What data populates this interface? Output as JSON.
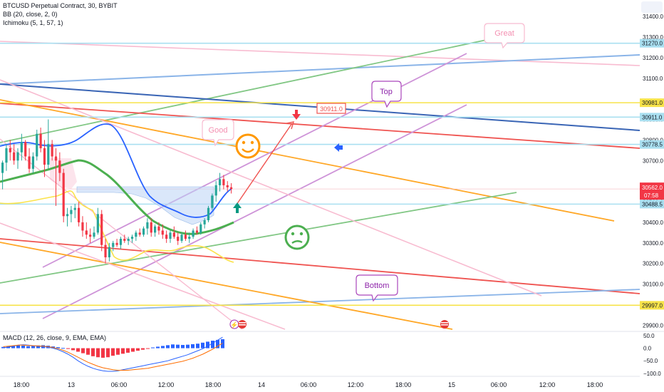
{
  "header": {
    "symbol": "BTCUSD Perpetual Contract, 30, BYBIT",
    "bb": "BB (20, close, 2, 0)",
    "ichimoku": "Ichimoku (5, 1, 57, 1)",
    "macd": "MACD (12, 26, close, 9, EMA, EMA)"
  },
  "annotations": {
    "good": "Good",
    "great": "Great",
    "top": "Top",
    "bottom": "Bottom",
    "price_label": "30911.0"
  },
  "chart_data": {
    "type": "candlestick",
    "symbol": "BTCUSD",
    "interval": "30",
    "price_axis_ticks": [
      31400,
      31300,
      31200,
      31100,
      30900,
      30800,
      30700,
      30500,
      30400,
      30300,
      30200,
      30100,
      29900
    ],
    "price_axis_tick_labels": [
      "31400.0",
      "31300.0",
      "31200.0",
      "31100.0",
      "30900.0",
      "30800.0",
      "30700.0",
      "30500.0",
      "30400.0",
      "30300.0",
      "30200.0",
      "30100.0",
      "29900.0"
    ],
    "price_ylim": [
      29870,
      31480
    ],
    "horizontal_levels": [
      {
        "value": 31270.0,
        "label": "31270.0",
        "color": "#a9dff0"
      },
      {
        "value": 30981.0,
        "label": "30981.0",
        "color": "#f7e34a"
      },
      {
        "value": 30911.0,
        "label": "30911.0",
        "color": "#a9dff0"
      },
      {
        "value": 30778.5,
        "label": "30778.5",
        "color": "#a9dff0"
      },
      {
        "value": 30488.5,
        "label": "30488.5",
        "color": "#a9dff0"
      },
      {
        "value": 29997.0,
        "label": "29997.0",
        "color": "#f7e34a"
      }
    ],
    "last_price": {
      "value": 30562.0,
      "label": "30562.0",
      "countdown": "07:58",
      "color": "#f23645"
    },
    "time_axis_labels": [
      "18:00",
      "13",
      "06:00",
      "12:00",
      "18:00",
      "14",
      "06:00",
      "12:00",
      "18:00",
      "15",
      "06:00",
      "12:00",
      "18:00"
    ],
    "candles": [
      {
        "o": 30640,
        "h": 30700,
        "l": 30560,
        "c": 30690
      },
      {
        "o": 30690,
        "h": 30780,
        "l": 30650,
        "c": 30760
      },
      {
        "o": 30760,
        "h": 30800,
        "l": 30700,
        "c": 30740
      },
      {
        "o": 30740,
        "h": 30780,
        "l": 30680,
        "c": 30700
      },
      {
        "o": 30700,
        "h": 30760,
        "l": 30660,
        "c": 30740
      },
      {
        "o": 30740,
        "h": 30830,
        "l": 30700,
        "c": 30790
      },
      {
        "o": 30790,
        "h": 30800,
        "l": 30700,
        "c": 30720
      },
      {
        "o": 30720,
        "h": 30760,
        "l": 30640,
        "c": 30660
      },
      {
        "o": 30660,
        "h": 30740,
        "l": 30640,
        "c": 30720
      },
      {
        "o": 30720,
        "h": 30850,
        "l": 30700,
        "c": 30830
      },
      {
        "o": 30830,
        "h": 30860,
        "l": 30740,
        "c": 30760
      },
      {
        "o": 30760,
        "h": 30800,
        "l": 30620,
        "c": 30680
      },
      {
        "o": 30680,
        "h": 30900,
        "l": 30660,
        "c": 30780
      },
      {
        "o": 30780,
        "h": 30800,
        "l": 30700,
        "c": 30720
      },
      {
        "o": 30720,
        "h": 30760,
        "l": 30480,
        "c": 30700
      },
      {
        "o": 30700,
        "h": 30740,
        "l": 30600,
        "c": 30640
      },
      {
        "o": 30640,
        "h": 30660,
        "l": 30400,
        "c": 30430
      },
      {
        "o": 30430,
        "h": 30470,
        "l": 30380,
        "c": 30440
      },
      {
        "o": 30440,
        "h": 30480,
        "l": 30400,
        "c": 30460
      },
      {
        "o": 30460,
        "h": 30490,
        "l": 30420,
        "c": 30470
      },
      {
        "o": 30470,
        "h": 30500,
        "l": 30380,
        "c": 30400
      },
      {
        "o": 30400,
        "h": 30430,
        "l": 30330,
        "c": 30360
      },
      {
        "o": 30360,
        "h": 30400,
        "l": 30320,
        "c": 30340
      },
      {
        "o": 30340,
        "h": 30370,
        "l": 30300,
        "c": 30330
      },
      {
        "o": 30330,
        "h": 30380,
        "l": 30320,
        "c": 30350
      },
      {
        "o": 30350,
        "h": 30470,
        "l": 30340,
        "c": 30440
      },
      {
        "o": 30440,
        "h": 30460,
        "l": 30260,
        "c": 30290
      },
      {
        "o": 30290,
        "h": 30320,
        "l": 30200,
        "c": 30230
      },
      {
        "o": 30230,
        "h": 30300,
        "l": 30210,
        "c": 30280
      },
      {
        "o": 30280,
        "h": 30310,
        "l": 30260,
        "c": 30300
      },
      {
        "o": 30300,
        "h": 30320,
        "l": 30280,
        "c": 30290
      },
      {
        "o": 30290,
        "h": 30330,
        "l": 30270,
        "c": 30320
      },
      {
        "o": 30320,
        "h": 30340,
        "l": 30300,
        "c": 30310
      },
      {
        "o": 30310,
        "h": 30330,
        "l": 30290,
        "c": 30320
      },
      {
        "o": 30320,
        "h": 30340,
        "l": 30300,
        "c": 30330
      },
      {
        "o": 30330,
        "h": 30360,
        "l": 30310,
        "c": 30350
      },
      {
        "o": 30350,
        "h": 30370,
        "l": 30330,
        "c": 30340
      },
      {
        "o": 30340,
        "h": 30380,
        "l": 30330,
        "c": 30370
      },
      {
        "o": 30370,
        "h": 30420,
        "l": 30340,
        "c": 30400
      },
      {
        "o": 30400,
        "h": 30420,
        "l": 30330,
        "c": 30350
      },
      {
        "o": 30350,
        "h": 30390,
        "l": 30330,
        "c": 30380
      },
      {
        "o": 30380,
        "h": 30400,
        "l": 30340,
        "c": 30360
      },
      {
        "o": 30360,
        "h": 30390,
        "l": 30320,
        "c": 30340
      },
      {
        "o": 30340,
        "h": 30360,
        "l": 30300,
        "c": 30320
      },
      {
        "o": 30320,
        "h": 30360,
        "l": 30300,
        "c": 30350
      },
      {
        "o": 30350,
        "h": 30380,
        "l": 30320,
        "c": 30330
      },
      {
        "o": 30330,
        "h": 30350,
        "l": 30290,
        "c": 30310
      },
      {
        "o": 30310,
        "h": 30350,
        "l": 30300,
        "c": 30340
      },
      {
        "o": 30340,
        "h": 30360,
        "l": 30310,
        "c": 30320
      },
      {
        "o": 30320,
        "h": 30350,
        "l": 30300,
        "c": 30330
      },
      {
        "o": 30330,
        "h": 30370,
        "l": 30320,
        "c": 30360
      },
      {
        "o": 30360,
        "h": 30380,
        "l": 30340,
        "c": 30350
      },
      {
        "o": 30350,
        "h": 30400,
        "l": 30340,
        "c": 30390
      },
      {
        "o": 30390,
        "h": 30420,
        "l": 30370,
        "c": 30410
      },
      {
        "o": 30410,
        "h": 30480,
        "l": 30400,
        "c": 30470
      },
      {
        "o": 30470,
        "h": 30540,
        "l": 30460,
        "c": 30530
      },
      {
        "o": 30530,
        "h": 30600,
        "l": 30500,
        "c": 30580
      },
      {
        "o": 30580,
        "h": 30640,
        "l": 30550,
        "c": 30610
      },
      {
        "o": 30610,
        "h": 30630,
        "l": 30560,
        "c": 30580
      },
      {
        "o": 30580,
        "h": 30600,
        "l": 30550,
        "c": 30570
      },
      {
        "o": 30570,
        "h": 30590,
        "l": 30540,
        "c": 30562
      }
    ],
    "macd_axis_ticks": [
      50.0,
      0.0,
      -50.0,
      -100.0
    ],
    "macd_axis_tick_labels": [
      "50.0",
      "0.0",
      "−50.0",
      "−100.0"
    ],
    "macd_ylim": [
      -112,
      64
    ],
    "macd_hist": [
      5,
      8,
      10,
      12,
      10,
      8,
      9,
      11,
      12,
      10,
      7,
      4,
      1,
      -3,
      -8,
      -14,
      -20,
      -26,
      -32,
      -36,
      -38,
      -36,
      -30,
      -26,
      -22,
      -18,
      -14,
      -10,
      -6,
      -2,
      3,
      6,
      9,
      12,
      15,
      14,
      13,
      14,
      16,
      18,
      22,
      26,
      30,
      33,
      36
    ],
    "macd_line": [
      2,
      4,
      8,
      12,
      14,
      12,
      10,
      8,
      6,
      4,
      0,
      -6,
      -14,
      -24,
      -36,
      -50,
      -62,
      -72,
      -80,
      -86,
      -90,
      -92,
      -92,
      -90,
      -86,
      -82,
      -78,
      -74,
      -70,
      -66,
      -62,
      -58,
      -54,
      -50,
      -44,
      -38,
      -32,
      -26,
      -18,
      -10,
      -2,
      8,
      20,
      32,
      44
    ],
    "signal_line": [
      6,
      8,
      10,
      12,
      12,
      11,
      10,
      9,
      8,
      6,
      3,
      -2,
      -8,
      -16,
      -26,
      -36,
      -46,
      -56,
      -64,
      -72,
      -78,
      -82,
      -86,
      -88,
      -88,
      -88,
      -86,
      -84,
      -82,
      -80,
      -76,
      -72,
      -68,
      -64,
      -60,
      -56,
      -52,
      -46,
      -40,
      -32,
      -24,
      -14,
      -4,
      8,
      20
    ]
  },
  "colors": {
    "up": "#26a69a",
    "down": "#f23645",
    "bb_upper": "#2962ff",
    "bb_basis": "#4caf50",
    "yellow": "#fbe34b",
    "cloud": "#bbd4f5",
    "axis_text": "#131722",
    "grid": "#f0f3fa"
  },
  "icons": [
    "smile-emoji-icon",
    "confused-emoji-icon",
    "down-arrow-icon",
    "up-arrow-icon",
    "left-arrow-icon",
    "event-flag-icon"
  ]
}
